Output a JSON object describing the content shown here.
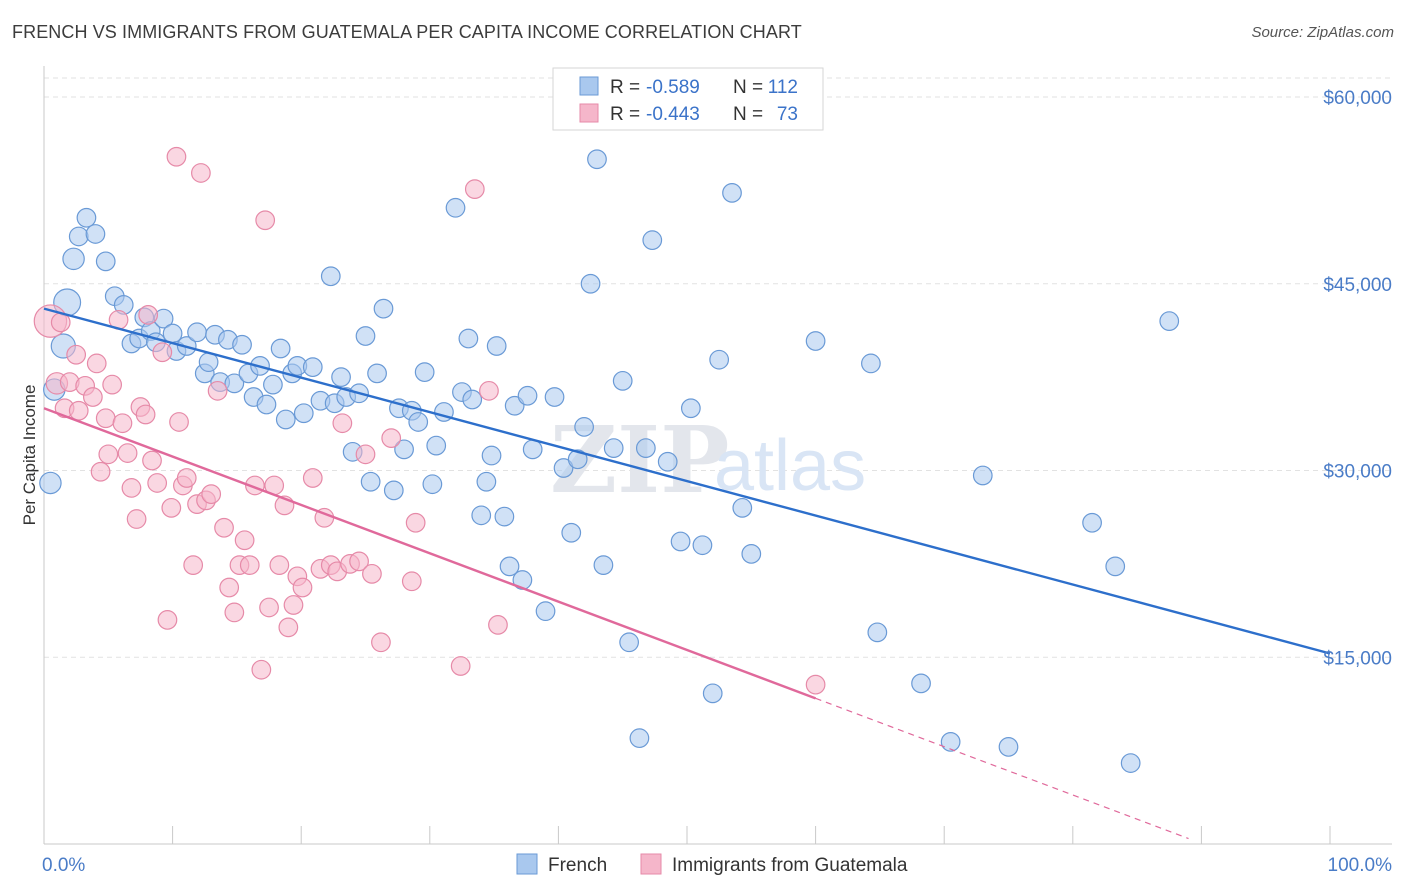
{
  "title": "FRENCH VS IMMIGRANTS FROM GUATEMALA PER CAPITA INCOME CORRELATION CHART",
  "source": "Source: ZipAtlas.com",
  "watermark": {
    "zip": "ZIP",
    "atlas": "atlas"
  },
  "chart_data": {
    "type": "scatter",
    "ylabel": "Per Capita Income",
    "xlim": [
      0,
      100
    ],
    "ylim": [
      0,
      63000
    ],
    "x_tick_labels": [
      "0.0%",
      "100.0%"
    ],
    "y_ticks": [
      {
        "value": 15000,
        "label": "$15,000"
      },
      {
        "value": 30000,
        "label": "$30,000"
      },
      {
        "value": 45000,
        "label": "$45,000"
      },
      {
        "value": 60000,
        "label": "$60,000"
      }
    ],
    "grid": true,
    "legend_position": "top-center",
    "legend": [
      {
        "r_label": "R =",
        "r_value": "-0.589",
        "n_label": "N =",
        "n_value": "112"
      },
      {
        "r_label": "R =",
        "r_value": "-0.443",
        "n_label": "N =",
        "n_value": "73"
      }
    ],
    "series": [
      {
        "name": "French",
        "color": "#a9c8ee",
        "stroke": "#6a9ad6",
        "line_color": "#2d6fcb",
        "trend": {
          "x0": 0,
          "y0": 43000,
          "x1": 100,
          "y1": 15300,
          "dash_to": 100
        },
        "points": [
          [
            0.5,
            29000,
            14
          ],
          [
            0.8,
            36500,
            14
          ],
          [
            1.5,
            40000,
            16
          ],
          [
            1.8,
            43500,
            18
          ],
          [
            2.3,
            47000,
            14
          ],
          [
            2.7,
            48800,
            12
          ],
          [
            3.3,
            50300,
            12
          ],
          [
            4.0,
            49000,
            12
          ],
          [
            4.8,
            46800,
            12
          ],
          [
            5.5,
            44000,
            12
          ],
          [
            6.2,
            43300,
            12
          ],
          [
            6.8,
            40200,
            12
          ],
          [
            7.4,
            40600,
            12
          ],
          [
            7.8,
            42300,
            12
          ],
          [
            8.3,
            41200,
            12
          ],
          [
            8.7,
            40300,
            12
          ],
          [
            9.3,
            42200,
            12
          ],
          [
            10.0,
            41000,
            12
          ],
          [
            10.3,
            39600,
            12
          ],
          [
            11.1,
            40000,
            12
          ],
          [
            11.9,
            41100,
            12
          ],
          [
            12.5,
            37800,
            12
          ],
          [
            12.8,
            38700,
            12
          ],
          [
            13.3,
            40900,
            12
          ],
          [
            13.7,
            37100,
            12
          ],
          [
            14.3,
            40500,
            12
          ],
          [
            14.8,
            37000,
            12
          ],
          [
            15.4,
            40100,
            12
          ],
          [
            15.9,
            37800,
            12
          ],
          [
            16.3,
            35900,
            12
          ],
          [
            16.8,
            38400,
            12
          ],
          [
            17.3,
            35300,
            12
          ],
          [
            17.8,
            36900,
            12
          ],
          [
            18.4,
            39800,
            12
          ],
          [
            18.8,
            34100,
            12
          ],
          [
            19.3,
            37800,
            12
          ],
          [
            19.7,
            38400,
            12
          ],
          [
            20.2,
            34600,
            12
          ],
          [
            20.9,
            38300,
            12
          ],
          [
            21.5,
            35600,
            12
          ],
          [
            22.3,
            45600,
            12
          ],
          [
            22.6,
            35400,
            12
          ],
          [
            23.1,
            37500,
            12
          ],
          [
            23.5,
            35900,
            12
          ],
          [
            24.0,
            31500,
            12
          ],
          [
            24.5,
            36200,
            12
          ],
          [
            25.0,
            40800,
            12
          ],
          [
            25.4,
            29100,
            12
          ],
          [
            25.9,
            37800,
            12
          ],
          [
            26.4,
            43000,
            12
          ],
          [
            27.2,
            28400,
            12
          ],
          [
            27.6,
            35000,
            12
          ],
          [
            28.0,
            31700,
            12
          ],
          [
            28.6,
            34800,
            12
          ],
          [
            29.1,
            33900,
            12
          ],
          [
            29.6,
            37900,
            12
          ],
          [
            30.2,
            28900,
            12
          ],
          [
            30.5,
            32000,
            12
          ],
          [
            31.1,
            34700,
            12
          ],
          [
            32.0,
            51100,
            12
          ],
          [
            32.5,
            36300,
            12
          ],
          [
            33.0,
            40600,
            12
          ],
          [
            33.3,
            35700,
            12
          ],
          [
            34.0,
            26400,
            12
          ],
          [
            34.4,
            29100,
            12
          ],
          [
            34.8,
            31200,
            12
          ],
          [
            35.2,
            40000,
            12
          ],
          [
            35.8,
            26300,
            12
          ],
          [
            36.2,
            22300,
            12
          ],
          [
            36.6,
            35200,
            12
          ],
          [
            37.2,
            21200,
            12
          ],
          [
            37.6,
            36000,
            12
          ],
          [
            38.0,
            31700,
            12
          ],
          [
            39.0,
            18700,
            12
          ],
          [
            39.7,
            35900,
            12
          ],
          [
            40.4,
            30200,
            12
          ],
          [
            41.0,
            25000,
            12
          ],
          [
            41.5,
            30900,
            12
          ],
          [
            42.0,
            33500,
            12
          ],
          [
            42.5,
            45000,
            12
          ],
          [
            43.0,
            55000,
            12
          ],
          [
            43.5,
            22400,
            12
          ],
          [
            44.3,
            31800,
            12
          ],
          [
            45.0,
            37200,
            12
          ],
          [
            45.5,
            16200,
            12
          ],
          [
            46.3,
            8500,
            12
          ],
          [
            46.8,
            31800,
            12
          ],
          [
            47.3,
            48500,
            12
          ],
          [
            48.5,
            30700,
            12
          ],
          [
            49.5,
            24300,
            12
          ],
          [
            50.3,
            35000,
            12
          ],
          [
            51.2,
            24000,
            12
          ],
          [
            52.0,
            12100,
            12
          ],
          [
            52.5,
            38900,
            12
          ],
          [
            53.5,
            52300,
            12
          ],
          [
            54.3,
            27000,
            12
          ],
          [
            55.0,
            23300,
            12
          ],
          [
            60.0,
            40400,
            12
          ],
          [
            64.3,
            38600,
            12
          ],
          [
            64.8,
            17000,
            12
          ],
          [
            68.2,
            12900,
            12
          ],
          [
            70.5,
            8200,
            12
          ],
          [
            73.0,
            29600,
            12
          ],
          [
            75.0,
            7800,
            12
          ],
          [
            81.5,
            25800,
            12
          ],
          [
            83.3,
            22300,
            12
          ],
          [
            84.5,
            6500,
            12
          ],
          [
            87.5,
            42000,
            12
          ]
        ]
      },
      {
        "name": "Immigrants from Guatemala",
        "color": "#f5b6ca",
        "stroke": "#e68aa8",
        "line_color": "#e0699b",
        "trend": {
          "x0": 0,
          "y0": 35000,
          "x1": 60,
          "y1": 11700,
          "dash_to": 89
        },
        "points": [
          [
            0.5,
            42000,
            22
          ],
          [
            1.0,
            37000,
            14
          ],
          [
            1.6,
            35000,
            12
          ],
          [
            2.0,
            37100,
            12
          ],
          [
            2.7,
            34800,
            12
          ],
          [
            3.2,
            36800,
            12
          ],
          [
            3.8,
            35900,
            12
          ],
          [
            4.1,
            38600,
            12
          ],
          [
            4.4,
            29900,
            12
          ],
          [
            4.8,
            34200,
            12
          ],
          [
            5.0,
            31300,
            12
          ],
          [
            5.3,
            36900,
            12
          ],
          [
            5.8,
            42100,
            12
          ],
          [
            6.1,
            33800,
            12
          ],
          [
            6.5,
            31400,
            12
          ],
          [
            6.8,
            28600,
            12
          ],
          [
            7.2,
            26100,
            12
          ],
          [
            7.5,
            35100,
            12
          ],
          [
            7.9,
            34500,
            12
          ],
          [
            8.1,
            42500,
            12
          ],
          [
            8.4,
            30800,
            12
          ],
          [
            8.8,
            29000,
            12
          ],
          [
            9.2,
            39500,
            12
          ],
          [
            9.6,
            18000,
            12
          ],
          [
            9.9,
            27000,
            12
          ],
          [
            10.3,
            55200,
            12
          ],
          [
            10.5,
            33900,
            12
          ],
          [
            10.8,
            28800,
            12
          ],
          [
            11.1,
            29400,
            12
          ],
          [
            11.6,
            22400,
            12
          ],
          [
            11.9,
            27300,
            12
          ],
          [
            12.2,
            53900,
            12
          ],
          [
            12.6,
            27600,
            12
          ],
          [
            13.0,
            28100,
            12
          ],
          [
            13.5,
            36400,
            12
          ],
          [
            14.0,
            25400,
            12
          ],
          [
            14.4,
            20600,
            12
          ],
          [
            14.8,
            18600,
            12
          ],
          [
            15.2,
            22400,
            12
          ],
          [
            15.6,
            24400,
            12
          ],
          [
            16.0,
            22400,
            12
          ],
          [
            16.4,
            28800,
            12
          ],
          [
            16.9,
            14000,
            12
          ],
          [
            17.2,
            50100,
            12
          ],
          [
            17.5,
            19000,
            12
          ],
          [
            17.9,
            28800,
            12
          ],
          [
            18.3,
            22400,
            12
          ],
          [
            18.7,
            27200,
            12
          ],
          [
            19.0,
            17400,
            12
          ],
          [
            19.4,
            19200,
            12
          ],
          [
            19.7,
            21500,
            12
          ],
          [
            20.1,
            20600,
            12
          ],
          [
            20.9,
            29400,
            12
          ],
          [
            21.5,
            22100,
            12
          ],
          [
            21.8,
            26200,
            12
          ],
          [
            22.3,
            22400,
            12
          ],
          [
            22.8,
            21900,
            12
          ],
          [
            23.2,
            33800,
            12
          ],
          [
            23.8,
            22500,
            12
          ],
          [
            24.5,
            22700,
            12
          ],
          [
            25.0,
            31300,
            12
          ],
          [
            25.5,
            21700,
            12
          ],
          [
            26.2,
            16200,
            12
          ],
          [
            27.0,
            32600,
            12
          ],
          [
            28.6,
            21100,
            12
          ],
          [
            28.9,
            25800,
            12
          ],
          [
            32.4,
            14300,
            12
          ],
          [
            33.5,
            52600,
            12
          ],
          [
            34.6,
            36400,
            12
          ],
          [
            35.3,
            17600,
            12
          ],
          [
            60.0,
            12800,
            12
          ],
          [
            1.3,
            41900,
            12
          ],
          [
            2.5,
            39300,
            12
          ]
        ]
      }
    ]
  }
}
